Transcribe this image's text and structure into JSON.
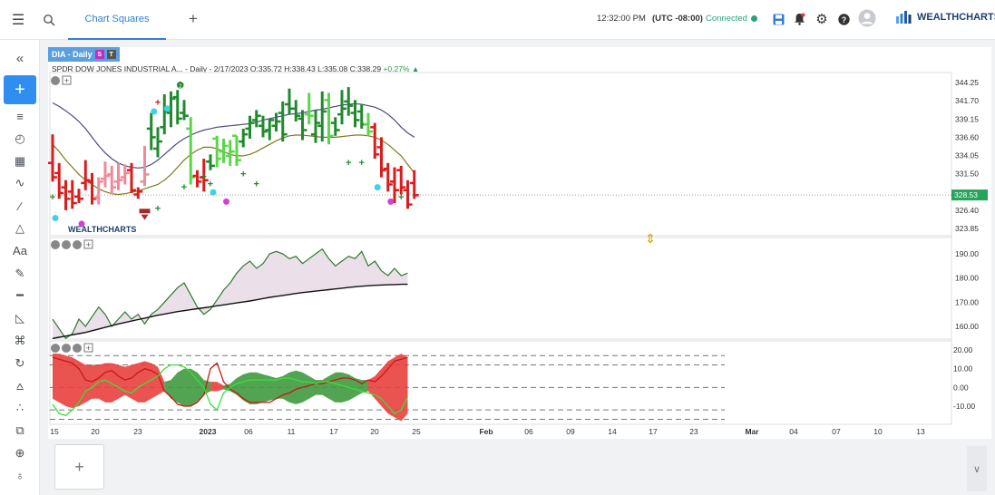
{
  "topbar": {
    "tab_label": "Chart Squares",
    "time": "12:32:00 PM",
    "timezone": "(UTC -08:00)",
    "connection_status": "Connected",
    "logo_text": "WEALTHCHARTS",
    "icons": [
      "menu-icon",
      "search-icon",
      "add-tab-icon",
      "save-icon",
      "alert-icon",
      "gear-icon",
      "help-icon",
      "user-icon"
    ]
  },
  "sidebar": {
    "icons": [
      "collapse-icon",
      "add-icon",
      "indicators-icon",
      "clock-icon",
      "calendar-icon",
      "trend-icon",
      "line-icon",
      "shapes-icon",
      "text-icon",
      "pen-icon",
      "ruler-icon",
      "measure-icon",
      "trash-icon",
      "refresh-icon",
      "chart-icon",
      "nodes-icon",
      "layers-icon",
      "crosshair-icon",
      "globe-icon"
    ],
    "collapse_glyph": "«"
  },
  "chart": {
    "symbol_tag": "DIA - Daily",
    "badge_s": "S",
    "badge_t": "T",
    "title": "SPDR DOW JONES INDUSTRIAL A...",
    "info_daily": "- Daily - 2/17/2023",
    "info_o": "O:335.72",
    "info_h": "H:338.43",
    "info_l": "L:335.08",
    "info_c": "C:338.29",
    "info_chg": "+0.27%",
    "watermark": "WEALTHCHARTS",
    "last_price": "328.53",
    "colors": {
      "up": "#1f8a2d",
      "up_light": "#5bd64a",
      "down": "#d91c1c",
      "down_light": "#f08a98",
      "avg_slow": "#4a4a82",
      "avg_fast": "#7f7a18"
    }
  },
  "chart_data": {
    "type": "ohlc",
    "price_axis": [
      "344.25",
      "341.70",
      "339.15",
      "336.60",
      "334.05",
      "331.50",
      "326.40",
      "323.85"
    ],
    "indicator1_axis": [
      "190.00",
      "180.00",
      "170.00",
      "160.00"
    ],
    "indicator2_axis": [
      "20.00",
      "10.00",
      "0.00",
      "-10.00"
    ],
    "x_ticks": [
      "15",
      "20",
      "23",
      "2023",
      "06",
      "11",
      "17",
      "20",
      "25",
      "Feb",
      "06",
      "09",
      "14",
      "17",
      "23",
      "Mar",
      "04",
      "07",
      "10",
      "13"
    ],
    "bars": [
      {
        "o": 333.0,
        "h": 337.0,
        "l": 330.4,
        "c": 331.0,
        "t": "down"
      },
      {
        "o": 331.6,
        "h": 333.0,
        "l": 328.0,
        "c": 328.8,
        "t": "down"
      },
      {
        "o": 329.6,
        "h": 330.6,
        "l": 326.4,
        "c": 328.0,
        "t": "down"
      },
      {
        "o": 329.0,
        "h": 330.6,
        "l": 326.6,
        "c": 327.4,
        "t": "down"
      },
      {
        "o": 328.3,
        "h": 329.4,
        "l": 327.4,
        "c": 328.0,
        "t": "down"
      },
      {
        "o": 330.2,
        "h": 333.4,
        "l": 329.2,
        "c": 330.6,
        "t": "down"
      },
      {
        "o": 330.4,
        "h": 331.6,
        "l": 327.2,
        "c": 328.0,
        "t": "down"
      },
      {
        "o": 328.2,
        "h": 331.0,
        "l": 327.2,
        "c": 330.4,
        "t": "down_light"
      },
      {
        "o": 330.8,
        "h": 333.2,
        "l": 329.6,
        "c": 331.2,
        "t": "down_light"
      },
      {
        "o": 331.4,
        "h": 332.6,
        "l": 328.6,
        "c": 329.6,
        "t": "down_light"
      },
      {
        "o": 330.4,
        "h": 333.0,
        "l": 329.2,
        "c": 330.6,
        "t": "down_light"
      },
      {
        "o": 331.0,
        "h": 332.8,
        "l": 330.0,
        "c": 331.6,
        "t": "down_light"
      },
      {
        "o": 332.0,
        "h": 333.0,
        "l": 328.8,
        "c": 329.2,
        "t": "down"
      },
      {
        "o": 328.6,
        "h": 329.6,
        "l": 328.0,
        "c": 329.0,
        "t": "down"
      },
      {
        "o": 330.4,
        "h": 335.4,
        "l": 329.8,
        "c": 331.4,
        "t": "down_light"
      },
      {
        "o": 337.8,
        "h": 340.0,
        "l": 334.8,
        "c": 336.6,
        "t": "up"
      },
      {
        "o": 335.0,
        "h": 338.0,
        "l": 333.8,
        "c": 336.0,
        "t": "up"
      },
      {
        "o": 338.0,
        "h": 342.6,
        "l": 337.0,
        "c": 340.2,
        "t": "up"
      },
      {
        "o": 340.0,
        "h": 343.0,
        "l": 338.0,
        "c": 342.0,
        "t": "up"
      },
      {
        "o": 342.2,
        "h": 343.2,
        "l": 338.4,
        "c": 339.2,
        "t": "up"
      },
      {
        "o": 340.0,
        "h": 341.8,
        "l": 339.0,
        "c": 339.6,
        "t": "up"
      },
      {
        "o": 337.8,
        "h": 339.4,
        "l": 330.0,
        "c": 331.0,
        "t": "up_light"
      },
      {
        "o": 331.2,
        "h": 332.0,
        "l": 329.6,
        "c": 330.4,
        "t": "down"
      },
      {
        "o": 331.0,
        "h": 333.6,
        "l": 329.0,
        "c": 330.6,
        "t": "down"
      },
      {
        "o": 333.2,
        "h": 334.2,
        "l": 332.0,
        "c": 332.6,
        "t": "up"
      },
      {
        "o": 336.4,
        "h": 336.8,
        "l": 332.4,
        "c": 333.6,
        "t": "up_light"
      },
      {
        "o": 334.6,
        "h": 336.4,
        "l": 333.0,
        "c": 335.4,
        "t": "up_light"
      },
      {
        "o": 334.0,
        "h": 336.2,
        "l": 332.6,
        "c": 334.6,
        "t": "up_light"
      },
      {
        "o": 336.8,
        "h": 336.8,
        "l": 332.6,
        "c": 333.4,
        "t": "up_light"
      },
      {
        "o": 336.0,
        "h": 337.8,
        "l": 335.2,
        "c": 337.0,
        "t": "up"
      },
      {
        "o": 337.8,
        "h": 339.6,
        "l": 336.4,
        "c": 338.6,
        "t": "up"
      },
      {
        "o": 339.0,
        "h": 340.4,
        "l": 338.0,
        "c": 339.6,
        "t": "up"
      },
      {
        "o": 338.2,
        "h": 339.6,
        "l": 336.6,
        "c": 337.4,
        "t": "up"
      },
      {
        "o": 337.6,
        "h": 339.2,
        "l": 336.2,
        "c": 339.0,
        "t": "up"
      },
      {
        "o": 338.2,
        "h": 340.0,
        "l": 337.4,
        "c": 338.8,
        "t": "up"
      },
      {
        "o": 340.0,
        "h": 341.6,
        "l": 336.0,
        "c": 337.0,
        "t": "up"
      },
      {
        "o": 341.2,
        "h": 343.4,
        "l": 339.8,
        "c": 340.6,
        "t": "up"
      },
      {
        "o": 340.6,
        "h": 341.8,
        "l": 338.8,
        "c": 339.6,
        "t": "up"
      },
      {
        "o": 339.2,
        "h": 340.4,
        "l": 336.2,
        "c": 337.6,
        "t": "up"
      },
      {
        "o": 339.8,
        "h": 342.8,
        "l": 338.4,
        "c": 339.6,
        "t": "up_light"
      },
      {
        "o": 337.0,
        "h": 340.4,
        "l": 335.8,
        "c": 338.6,
        "t": "up"
      },
      {
        "o": 338.2,
        "h": 343.0,
        "l": 336.0,
        "c": 340.2,
        "t": "up"
      },
      {
        "o": 341.8,
        "h": 342.8,
        "l": 335.6,
        "c": 336.8,
        "t": "up_light"
      },
      {
        "o": 338.6,
        "h": 339.4,
        "l": 336.8,
        "c": 337.6,
        "t": "up"
      },
      {
        "o": 339.8,
        "h": 343.2,
        "l": 338.4,
        "c": 340.6,
        "t": "up"
      },
      {
        "o": 341.6,
        "h": 343.6,
        "l": 339.6,
        "c": 341.0,
        "t": "up"
      },
      {
        "o": 340.0,
        "h": 341.8,
        "l": 338.0,
        "c": 339.0,
        "t": "up"
      },
      {
        "o": 340.2,
        "h": 341.2,
        "l": 337.8,
        "c": 338.4,
        "t": "up"
      },
      {
        "o": 338.4,
        "h": 340.0,
        "l": 336.8,
        "c": 337.4,
        "t": "up_light"
      },
      {
        "o": 338.0,
        "h": 338.6,
        "l": 333.6,
        "c": 334.2,
        "t": "down"
      },
      {
        "o": 335.2,
        "h": 336.6,
        "l": 331.0,
        "c": 332.0,
        "t": "down"
      },
      {
        "o": 332.2,
        "h": 333.0,
        "l": 329.0,
        "c": 330.0,
        "t": "down"
      },
      {
        "o": 330.4,
        "h": 332.4,
        "l": 327.4,
        "c": 329.2,
        "t": "down"
      },
      {
        "o": 332.0,
        "h": 332.6,
        "l": 328.6,
        "c": 329.6,
        "t": "down"
      },
      {
        "o": 329.2,
        "h": 330.6,
        "l": 326.6,
        "c": 327.2,
        "t": "down"
      },
      {
        "o": 330.2,
        "h": 332.0,
        "l": 328.0,
        "c": 328.5,
        "t": "down"
      }
    ],
    "avg_slow": [
      341.4,
      340.9,
      340.3,
      339.6,
      338.8,
      337.8,
      336.6,
      335.4,
      334.4,
      333.6,
      333.0,
      332.6,
      332.4,
      332.3,
      332.4,
      332.8,
      333.4,
      334.2,
      335.0,
      335.8,
      336.4,
      336.9,
      337.3,
      337.6,
      337.8,
      338.0,
      338.1,
      338.2,
      338.3,
      338.4,
      338.5,
      338.7,
      339.0,
      339.2,
      339.4,
      339.6,
      339.8,
      339.9,
      340.0,
      340.2,
      340.4,
      340.5,
      340.7,
      340.9,
      341.1,
      341.2,
      341.3,
      341.2,
      341.0,
      340.8,
      340.4,
      339.8,
      339.0,
      338.0,
      337.2,
      336.6
    ],
    "avg_fast": [
      335.6,
      334.6,
      333.4,
      332.4,
      331.4,
      330.6,
      330.0,
      329.4,
      329.0,
      328.7,
      328.6,
      328.7,
      328.9,
      329.1,
      329.4,
      329.7,
      330.0,
      330.6,
      331.4,
      332.4,
      333.4,
      334.2,
      334.8,
      335.2,
      335.2,
      335.0,
      334.6,
      334.2,
      334.0,
      334.0,
      334.2,
      334.6,
      335.1,
      335.6,
      336.1,
      336.5,
      336.8,
      336.9,
      336.9,
      336.8,
      336.7,
      336.6,
      336.6,
      336.6,
      336.7,
      336.8,
      336.9,
      336.9,
      336.8,
      336.6,
      336.2,
      335.6,
      334.8,
      334.0,
      332.8,
      331.6
    ],
    "indicator1": {
      "line_a": [
        163,
        159,
        155,
        157,
        163,
        160,
        164,
        168,
        165,
        160,
        163,
        166,
        163,
        165,
        161,
        165,
        167,
        170,
        173,
        176,
        178,
        173,
        168,
        165,
        167,
        171,
        175,
        178,
        182,
        185,
        187,
        184,
        186,
        190,
        191,
        190,
        188,
        189,
        186,
        188,
        190,
        192,
        188,
        185,
        187,
        189,
        188,
        191,
        185,
        187,
        183,
        181,
        184,
        181,
        182
      ],
      "line_b": [
        155,
        155.5,
        156,
        156.5,
        157,
        157.5,
        158.2,
        158.9,
        159.6,
        160.3,
        161,
        161.6,
        162.2,
        162.8,
        163.4,
        164,
        164.6,
        165.1,
        165.6,
        166.1,
        166.5,
        166.9,
        167.3,
        167.7,
        168.1,
        168.5,
        168.9,
        169.3,
        169.7,
        170.1,
        170.5,
        171,
        171.5,
        172,
        172.4,
        172.8,
        173.2,
        173.6,
        174,
        174.3,
        174.6,
        174.9,
        175.2,
        175.5,
        175.8,
        176.1,
        176.4,
        176.6,
        176.8,
        177,
        177.1,
        177.2,
        177.3,
        177.4,
        177.4
      ]
    },
    "indicator2": {
      "red_line": [
        16,
        15,
        14,
        13,
        10,
        4,
        3,
        5,
        8,
        9,
        6,
        4,
        5,
        8,
        10,
        9,
        7,
        -2,
        -5,
        -9,
        -10,
        -10,
        -8,
        -4,
        10,
        13,
        3,
        -1,
        -3,
        -6,
        -8,
        -8,
        -8,
        -8,
        -6,
        -4,
        -3,
        -1,
        0,
        1,
        2,
        2,
        3,
        4,
        5,
        5,
        4,
        2,
        4,
        3,
        6,
        10,
        14,
        15,
        16
      ],
      "green_line": [
        -9,
        -14,
        -15,
        -12,
        -8,
        -2,
        0,
        3,
        4,
        2,
        0,
        -2,
        -3,
        0,
        2,
        4,
        6,
        10,
        12,
        12,
        11,
        8,
        4,
        0,
        -9,
        -12,
        -3,
        0,
        2,
        3,
        4,
        4,
        4,
        4,
        4,
        5,
        5,
        4,
        3,
        3,
        2,
        3,
        3,
        2,
        1,
        0,
        -1,
        -2,
        -3,
        -4,
        -6,
        -10,
        -14,
        -12,
        -5
      ],
      "cloud_upper": [
        18,
        18,
        17,
        16,
        14,
        12,
        12,
        12,
        13,
        13,
        12,
        11,
        12,
        13,
        14,
        13,
        11,
        3,
        4,
        8,
        10,
        10,
        8,
        4,
        3,
        3,
        1,
        2,
        5,
        7,
        8,
        8,
        7,
        6,
        5,
        6,
        8,
        9,
        8,
        6,
        4,
        4,
        6,
        8,
        8,
        7,
        5,
        4,
        4,
        6,
        10,
        14,
        16,
        18,
        16
      ],
      "cloud_lower": [
        -6,
        -8,
        -10,
        -11,
        -10,
        -8,
        -6,
        -6,
        -8,
        -8,
        -6,
        -4,
        -6,
        -8,
        -8,
        -6,
        -4,
        -2,
        -6,
        -8,
        -10,
        -10,
        -8,
        -4,
        -2,
        -2,
        -1,
        -2,
        -4,
        -7,
        -9,
        -9,
        -8,
        -7,
        -6,
        -6,
        -8,
        -9,
        -8,
        -6,
        -4,
        -4,
        -6,
        -8,
        -8,
        -7,
        -5,
        -3,
        -2,
        -6,
        -10,
        -14,
        -16,
        -18,
        -14
      ],
      "cloud_colors": [
        "#e8403c",
        "#e8403c",
        "#e8403c",
        "#e8403c",
        "#e8403c",
        "#e8403c",
        "#e8403c",
        "#e8403c",
        "#e8403c",
        "#e8403c",
        "#e8403c",
        "#e8403c",
        "#e8403c",
        "#e8403c",
        "#e8403c",
        "#e8403c",
        "#e8403c",
        "#3f9a3f",
        "#3f9a3f",
        "#3f9a3f",
        "#3f9a3f",
        "#3f9a3f",
        "#3f9a3f",
        "#3f9a3f",
        "#e8403c",
        "#e8403c",
        "#3f9a3f",
        "#3f9a3f",
        "#3f9a3f",
        "#3f9a3f",
        "#3f9a3f",
        "#3f9a3f",
        "#3f9a3f",
        "#3f9a3f",
        "#3f9a3f",
        "#3f9a3f",
        "#3f9a3f",
        "#3f9a3f",
        "#3f9a3f",
        "#3f9a3f",
        "#3f9a3f",
        "#3f9a3f",
        "#3f9a3f",
        "#3f9a3f",
        "#3f9a3f",
        "#3f9a3f",
        "#3f9a3f",
        "#3f9a3f",
        "#e8403c",
        "#e8403c",
        "#e8403c",
        "#e8403c",
        "#e8403c",
        "#e8403c",
        "#e8403c"
      ]
    }
  }
}
